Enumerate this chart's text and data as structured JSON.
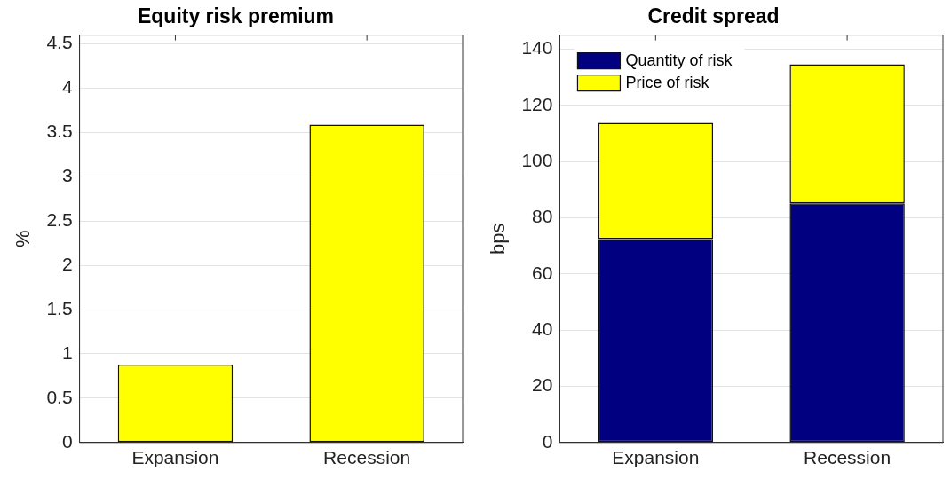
{
  "chart_data": [
    {
      "type": "bar",
      "title": "Equity risk premium",
      "ylabel": "%",
      "categories": [
        "Expansion",
        "Recession"
      ],
      "series": [
        {
          "color": "#ffff00",
          "values": [
            0.88,
            3.59
          ]
        }
      ],
      "ylim": [
        0,
        4.6
      ],
      "yticks": [
        0,
        0.5,
        1,
        1.5,
        2,
        2.5,
        3,
        3.5,
        4,
        4.5
      ],
      "grid": "y",
      "legend": false
    },
    {
      "type": "bar",
      "title": "Credit spread",
      "ylabel": "bps",
      "categories": [
        "Expansion",
        "Recession"
      ],
      "stacked": true,
      "series": [
        {
          "name": "Quantity of risk",
          "color": "#000080",
          "values": [
            72.4,
            85.1
          ]
        },
        {
          "name": "Price of risk",
          "color": "#ffff00",
          "values": [
            41.4,
            49.5
          ]
        }
      ],
      "ylim": [
        0,
        145
      ],
      "yticks": [
        0,
        20,
        40,
        60,
        80,
        100,
        120,
        140
      ],
      "grid": "y",
      "legend": "top left"
    }
  ]
}
